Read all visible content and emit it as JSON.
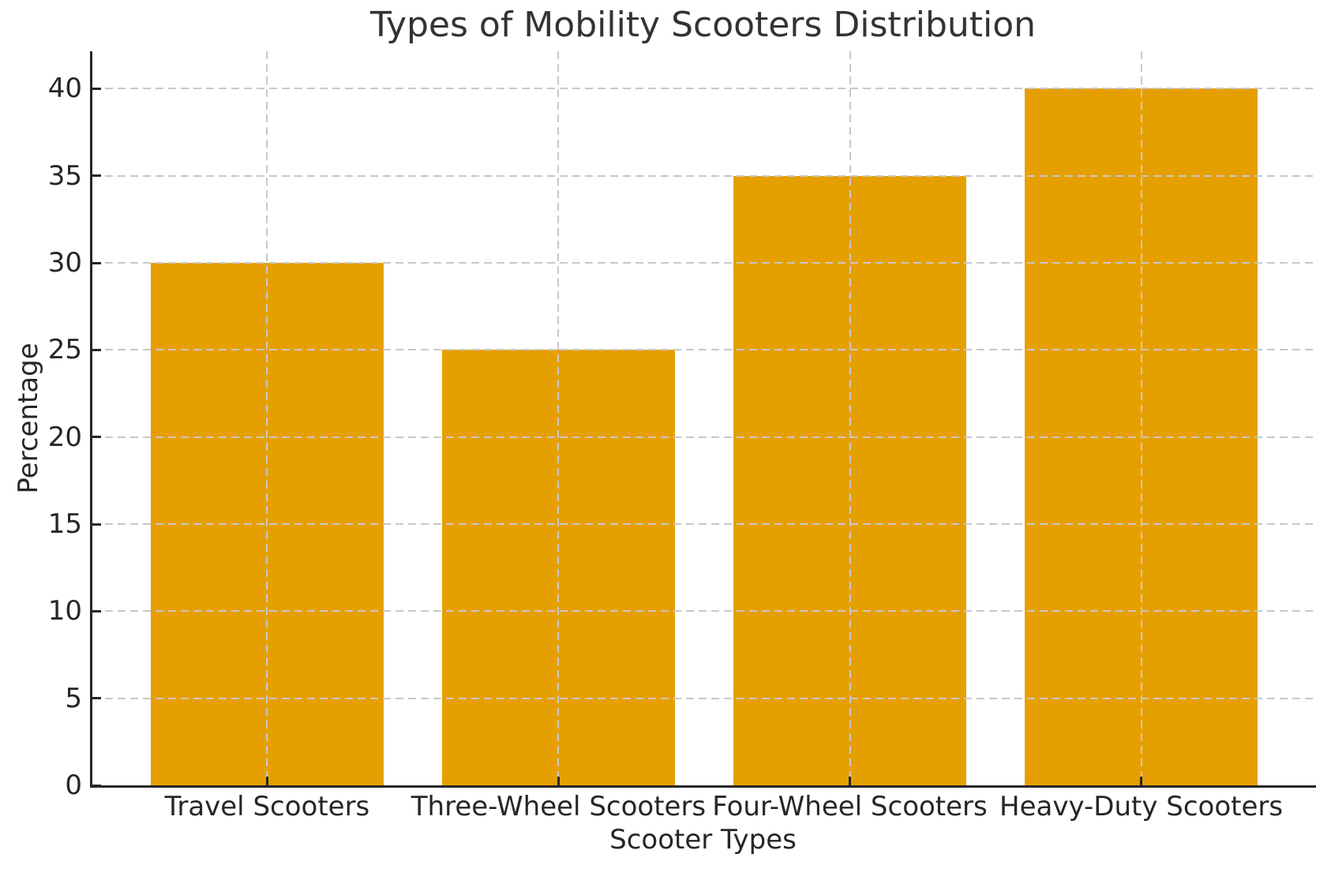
{
  "chart_data": {
    "type": "bar",
    "title": "Types of Mobility Scooters Distribution",
    "xlabel": "Scooter Types",
    "ylabel": "Percentage",
    "categories": [
      "Travel Scooters",
      "Three-Wheel Scooters",
      "Four-Wheel Scooters",
      "Heavy-Duty Scooters"
    ],
    "values": [
      30,
      25,
      35,
      40
    ],
    "yticks": [
      0,
      5,
      10,
      15,
      20,
      25,
      30,
      35,
      40
    ],
    "ylim": [
      0,
      42.15
    ],
    "bar_width_fraction": 0.8,
    "grid": "both-dashed",
    "legend": "none",
    "colors": {
      "bar": "#E69F00",
      "grid": "#C8C8C8",
      "spine": "#262626",
      "title_text": "#333333",
      "tick_text": "#262626"
    }
  }
}
